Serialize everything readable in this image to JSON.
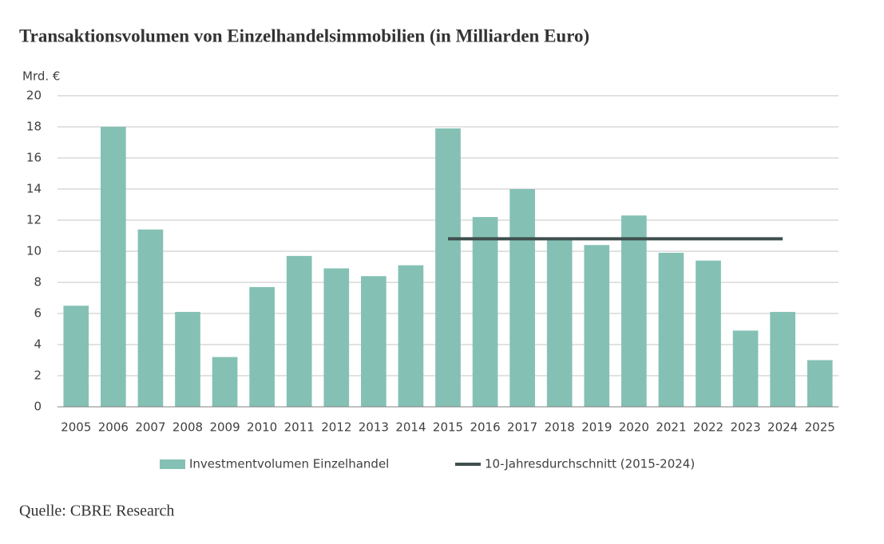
{
  "chart_data": {
    "type": "bar",
    "title": "Transaktionsvolumen von Einzelhandelsimmobilien (in Milliarden Euro)",
    "y_label": "Mrd. €",
    "source": "Quelle: CBRE Research",
    "categories": [
      "2005",
      "2006",
      "2007",
      "2008",
      "2009",
      "2010",
      "2011",
      "2012",
      "2013",
      "2014",
      "2015",
      "2016",
      "2017",
      "2018",
      "2019",
      "2020",
      "2021",
      "2022",
      "2023",
      "2024",
      "2025"
    ],
    "series": [
      {
        "name": "Investmentvolumen Einzelhandel",
        "type": "bar",
        "color": "#84c1b4",
        "values": [
          6.5,
          18.0,
          11.4,
          6.1,
          3.2,
          7.7,
          9.7,
          8.9,
          8.4,
          9.1,
          17.9,
          12.2,
          14.0,
          10.8,
          10.4,
          12.3,
          9.9,
          9.4,
          4.9,
          6.1,
          3.0
        ]
      },
      {
        "name": "10-Jahresdurchschnitt (2015-2024)",
        "type": "line",
        "color": "#3e4f4e",
        "values": [
          null,
          null,
          null,
          null,
          null,
          null,
          null,
          null,
          null,
          null,
          10.8,
          10.8,
          10.8,
          10.8,
          10.8,
          10.8,
          10.8,
          10.8,
          10.8,
          10.8,
          null
        ]
      }
    ],
    "ylim": [
      0,
      20
    ],
    "yticks": [
      0,
      2,
      4,
      6,
      8,
      10,
      12,
      14,
      16,
      18,
      20
    ],
    "grid": true
  }
}
